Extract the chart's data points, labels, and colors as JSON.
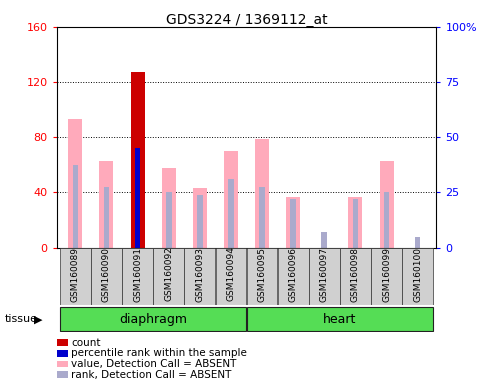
{
  "title": "GDS3224 / 1369112_at",
  "samples": [
    "GSM160089",
    "GSM160090",
    "GSM160091",
    "GSM160092",
    "GSM160093",
    "GSM160094",
    "GSM160095",
    "GSM160096",
    "GSM160097",
    "GSM160098",
    "GSM160099",
    "GSM160100"
  ],
  "tissue_groups": [
    {
      "label": "diaphragm",
      "start": 0,
      "end": 5
    },
    {
      "label": "heart",
      "start": 6,
      "end": 11
    }
  ],
  "ylim_left": [
    0,
    160
  ],
  "ylim_right": [
    0,
    100
  ],
  "yticks_left": [
    0,
    40,
    80,
    120,
    160
  ],
  "ytick_labels_left": [
    "0",
    "40",
    "80",
    "120",
    "160"
  ],
  "yticks_right": [
    0,
    25,
    50,
    75,
    100
  ],
  "ytick_labels_right": [
    "0",
    "25",
    "50",
    "75",
    "100%"
  ],
  "values_absent": [
    93,
    63,
    0,
    58,
    43,
    70,
    79,
    37,
    0,
    37,
    63,
    0
  ],
  "rank_absent_left": [
    60,
    44,
    0,
    40,
    38,
    50,
    44,
    0,
    0,
    0,
    40,
    0
  ],
  "count_val": [
    0,
    0,
    127,
    0,
    0,
    0,
    0,
    0,
    0,
    0,
    0,
    0
  ],
  "rank_present": [
    0,
    0,
    45,
    0,
    0,
    0,
    0,
    0,
    0,
    0,
    0,
    0
  ],
  "rank_absent_right": [
    0,
    0,
    0,
    0,
    0,
    0,
    0,
    22,
    7,
    22,
    0,
    5
  ],
  "color_count": "#cc0000",
  "color_rank_present": "#0000cc",
  "color_value_absent": "#ffaabb",
  "color_rank_absent": "#aaaacc",
  "background_color": "#ffffff",
  "legend_items": [
    {
      "color": "#cc0000",
      "label": "count"
    },
    {
      "color": "#0000cc",
      "label": "percentile rank within the sample"
    },
    {
      "color": "#ffaabb",
      "label": "value, Detection Call = ABSENT"
    },
    {
      "color": "#aaaacc",
      "label": "rank, Detection Call = ABSENT"
    }
  ]
}
